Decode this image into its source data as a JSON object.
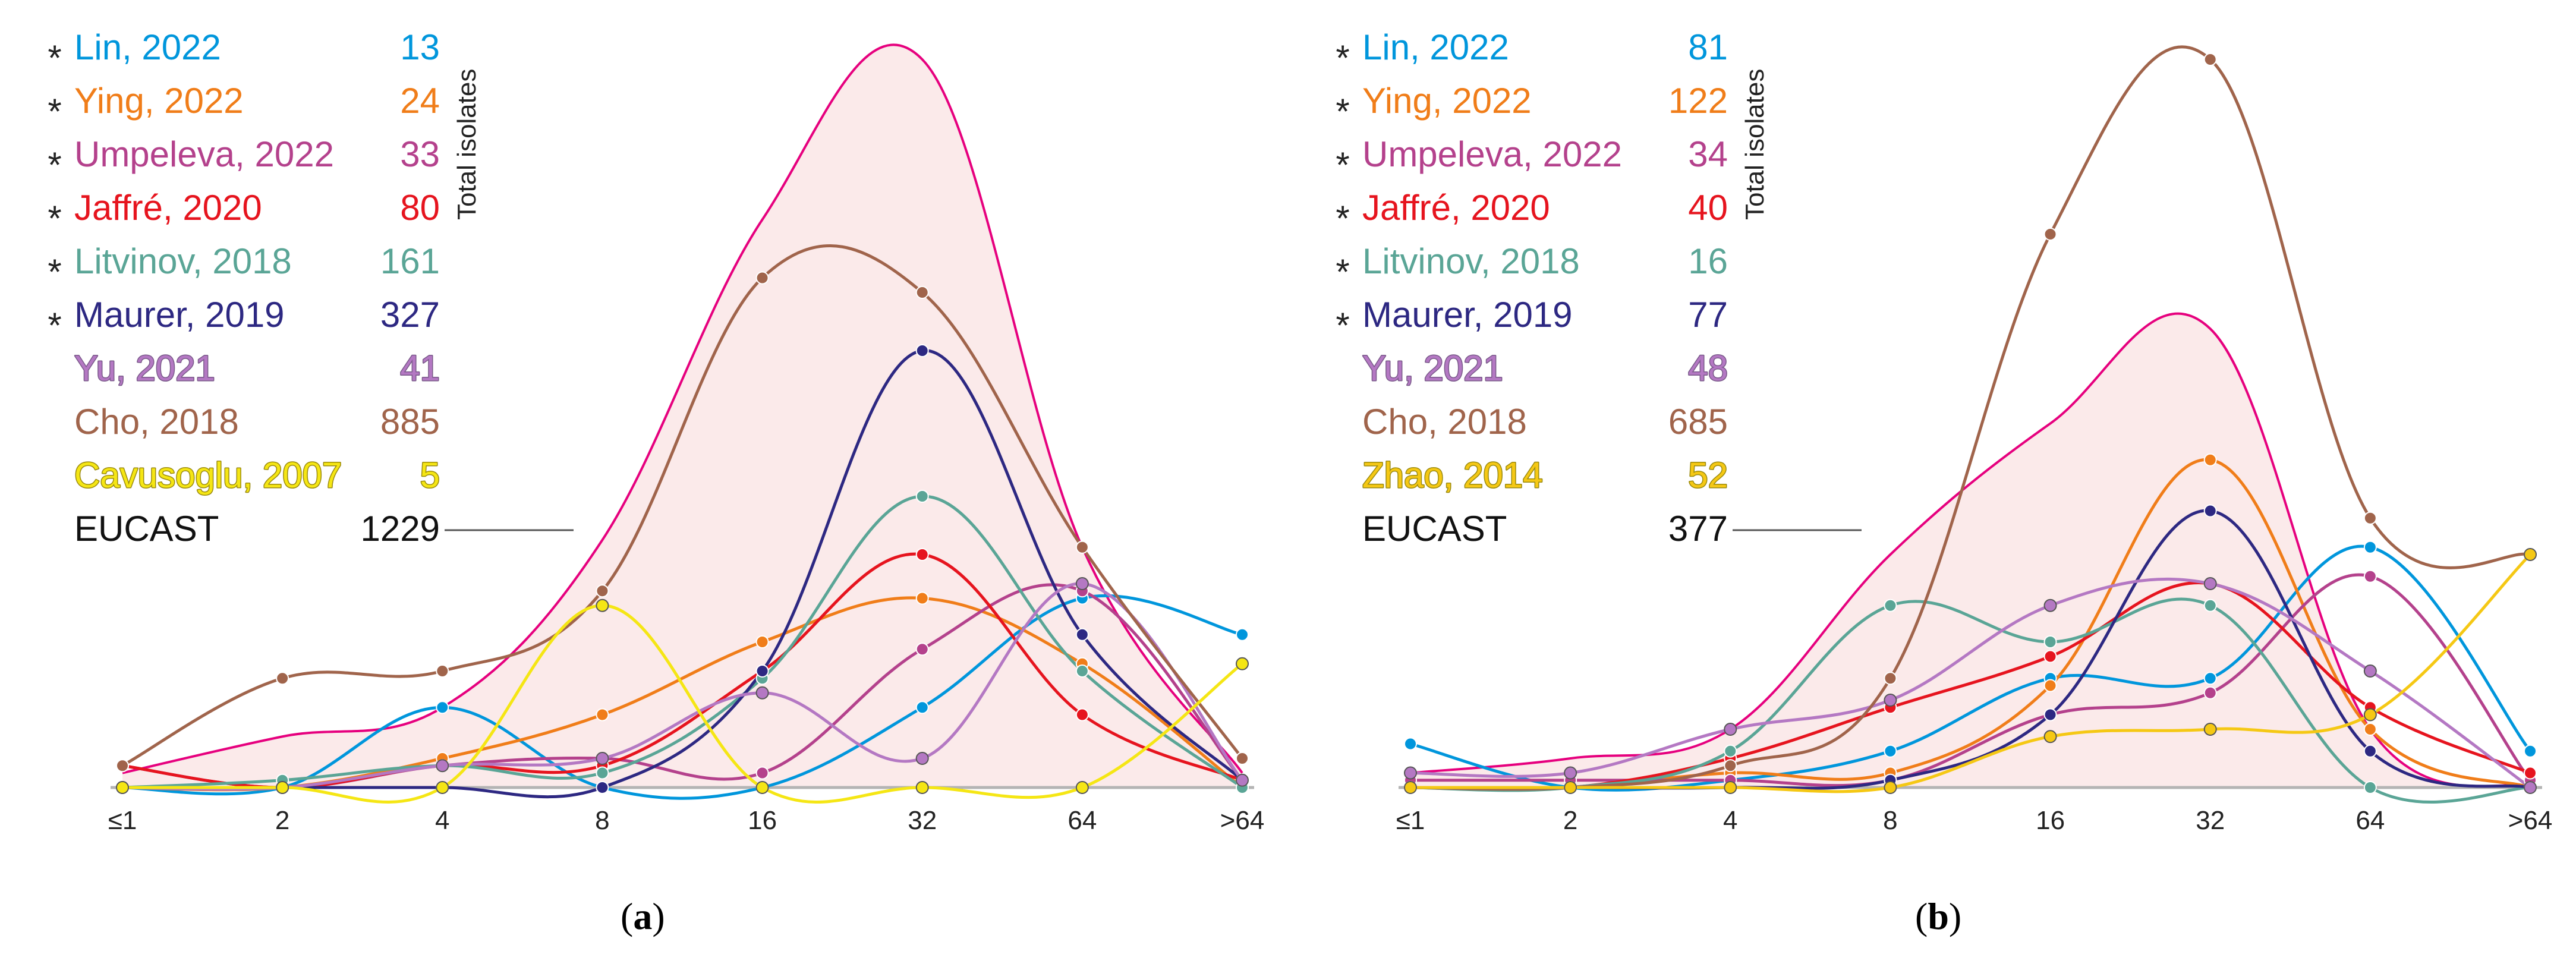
{
  "chart_data": [
    {
      "type": "line",
      "panel": "a",
      "caption_letter": "a",
      "categories": [
        "≤1",
        "2",
        "4",
        "8",
        "16",
        "32",
        "64",
        ">64"
      ],
      "side_label": "Total isolates",
      "envelope_color": "#e6007e",
      "envelope_fill": "#fbeaea",
      "series": [
        {
          "name": "Lin, 2022",
          "total": "13",
          "star": true,
          "color": "#0096dc",
          "values": [
            0,
            0,
            11,
            0,
            0,
            11,
            26,
            21
          ]
        },
        {
          "name": "Ying, 2022",
          "total": "24",
          "star": true,
          "color": "#f07d19",
          "values": [
            0,
            0,
            4,
            10,
            20,
            26,
            17,
            0
          ]
        },
        {
          "name": "Umpeleva, 2022",
          "total": "33",
          "star": true,
          "color": "#b4418c",
          "values": [
            3,
            0,
            3,
            4,
            2,
            19,
            27,
            1
          ]
        },
        {
          "name": "Jaffré, 2020",
          "total": "80",
          "star": true,
          "color": "#e6141e",
          "values": [
            3,
            0,
            3,
            3,
            16,
            32,
            10,
            1
          ]
        },
        {
          "name": "Litvinov, 2018",
          "total": "161",
          "star": true,
          "color": "#5aa596",
          "values": [
            0,
            1,
            3,
            2,
            15,
            40,
            16,
            0
          ]
        },
        {
          "name": "Maurer, 2019",
          "total": "327",
          "star": true,
          "color": "#2d2882",
          "values": [
            0,
            0,
            0,
            0,
            16,
            60,
            21,
            1
          ]
        },
        {
          "name": "Yu, 2021",
          "total": "41",
          "star": false,
          "color": "#b478c3",
          "outlined": true,
          "values": [
            0,
            0,
            3,
            4,
            13,
            4,
            28,
            1
          ]
        },
        {
          "name": "Cho, 2018",
          "total": "885",
          "star": false,
          "color": "#a0644b",
          "values": [
            3,
            15,
            16,
            27,
            70,
            68,
            33,
            4
          ]
        },
        {
          "name": "Cavusoglu, 2007",
          "total": "5",
          "star": false,
          "color": "#f5e614",
          "outlined": true,
          "values": [
            0,
            0,
            0,
            25,
            0,
            0,
            0,
            17
          ]
        },
        {
          "name": "EUCAST",
          "total": "1229",
          "star": false,
          "color": "#111111",
          "envelope": true,
          "values": [
            2,
            7,
            11,
            34,
            78,
            100,
            33,
            2
          ]
        }
      ]
    },
    {
      "type": "line",
      "panel": "b",
      "caption_letter": "b",
      "categories": [
        "≤1",
        "2",
        "4",
        "8",
        "16",
        "32",
        "64",
        ">64"
      ],
      "side_label": "Total isolates",
      "envelope_color": "#e6007e",
      "envelope_fill": "#fbeaea",
      "series": [
        {
          "name": "Lin, 2022",
          "total": "81",
          "star": true,
          "color": "#0096dc",
          "values": [
            6,
            0,
            1,
            5,
            15,
            15,
            33,
            5
          ]
        },
        {
          "name": "Ying, 2022",
          "total": "122",
          "star": true,
          "color": "#f07d19",
          "values": [
            0,
            0,
            2,
            2,
            14,
            45,
            8,
            0
          ]
        },
        {
          "name": "Umpeleva, 2022",
          "total": "34",
          "star": true,
          "color": "#b4418c",
          "values": [
            1,
            1,
            1,
            1,
            10,
            13,
            29,
            1
          ]
        },
        {
          "name": "Jaffré, 2020",
          "total": "40",
          "star": true,
          "color": "#e6141e",
          "values": [
            0,
            0,
            4,
            11,
            18,
            28,
            11,
            2
          ]
        },
        {
          "name": "Litvinov, 2018",
          "total": "16",
          "star": true,
          "color": "#5aa596",
          "values": [
            0,
            0,
            5,
            25,
            20,
            25,
            0,
            0
          ]
        },
        {
          "name": "Maurer, 2019",
          "total": "77",
          "star": true,
          "color": "#2d2882",
          "values": [
            0,
            0,
            0,
            1,
            10,
            38,
            5,
            0
          ]
        },
        {
          "name": "Yu, 2021",
          "total": "48",
          "star": false,
          "color": "#b478c3",
          "outlined": true,
          "values": [
            2,
            2,
            8,
            12,
            25,
            28,
            16,
            0
          ]
        },
        {
          "name": "Cho, 2018",
          "total": "685",
          "star": false,
          "color": "#a0644b",
          "values": [
            0,
            0,
            3,
            15,
            76,
            100,
            37,
            32
          ]
        },
        {
          "name": "Zhao, 2014",
          "total": "52",
          "star": false,
          "color": "#f5c814",
          "outlined": true,
          "values": [
            0,
            0,
            0,
            0,
            7,
            8,
            10,
            32
          ]
        },
        {
          "name": "EUCAST",
          "total": "377",
          "star": false,
          "color": "#111111",
          "envelope": true,
          "values": [
            2,
            4,
            8,
            32,
            50,
            63,
            8,
            0
          ]
        }
      ]
    }
  ]
}
